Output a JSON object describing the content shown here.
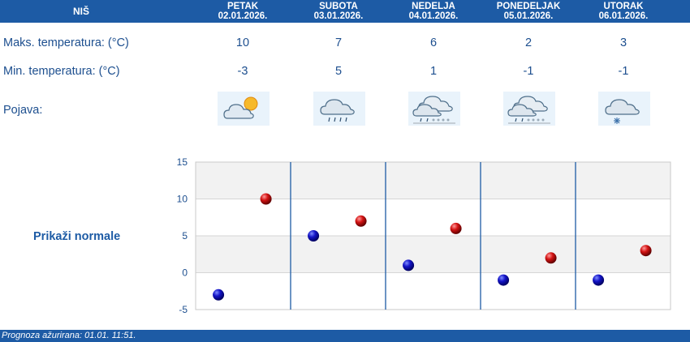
{
  "header": {
    "city": "NIŠ",
    "days": [
      {
        "name": "PETAK",
        "date": "02.01.2026."
      },
      {
        "name": "SUBOTA",
        "date": "03.01.2026."
      },
      {
        "name": "NEDELJA",
        "date": "04.01.2026."
      },
      {
        "name": "PONEDELJAK",
        "date": "05.01.2026."
      },
      {
        "name": "UTORAK",
        "date": "06.01.2026."
      }
    ]
  },
  "rows": {
    "max_label": "Maks. temperatura: (°C)",
    "min_label": "Min. temperatura: (°C)",
    "phenomenon_label": "Pojava:",
    "max_values": [
      "10",
      "7",
      "6",
      "2",
      "3"
    ],
    "min_values": [
      "-3",
      "5",
      "1",
      "-1",
      "-1"
    ]
  },
  "icons": [
    {
      "name": "partly-cloudy-sun-icon"
    },
    {
      "name": "cloud-rain-icon"
    },
    {
      "name": "cloud-rain-snow-icon"
    },
    {
      "name": "cloud-rain-snow-icon"
    },
    {
      "name": "cloud-snow-icon"
    }
  ],
  "normals_link": "Prikaži normale",
  "chart_data": {
    "type": "scatter",
    "categories": [
      "02.01.2026.",
      "03.01.2026.",
      "04.01.2026.",
      "05.01.2026.",
      "06.01.2026."
    ],
    "series": [
      {
        "values": [
          -3,
          5,
          1,
          -1,
          -1
        ],
        "color": "#1414c8"
      },
      {
        "values": [
          10,
          7,
          6,
          2,
          3
        ],
        "color": "#d41414"
      }
    ],
    "ylim": [
      -5,
      15
    ],
    "yticks": [
      "15",
      "10",
      "5",
      "0",
      "-5"
    ],
    "grid": true
  },
  "footer": {
    "text": "Prognoza ažurirana:  01.01. 11:51."
  },
  "colors": {
    "brand": "#1d5ba5",
    "text": "#1d4f8f",
    "min_dot": "#1414c8",
    "max_dot": "#d41414"
  }
}
